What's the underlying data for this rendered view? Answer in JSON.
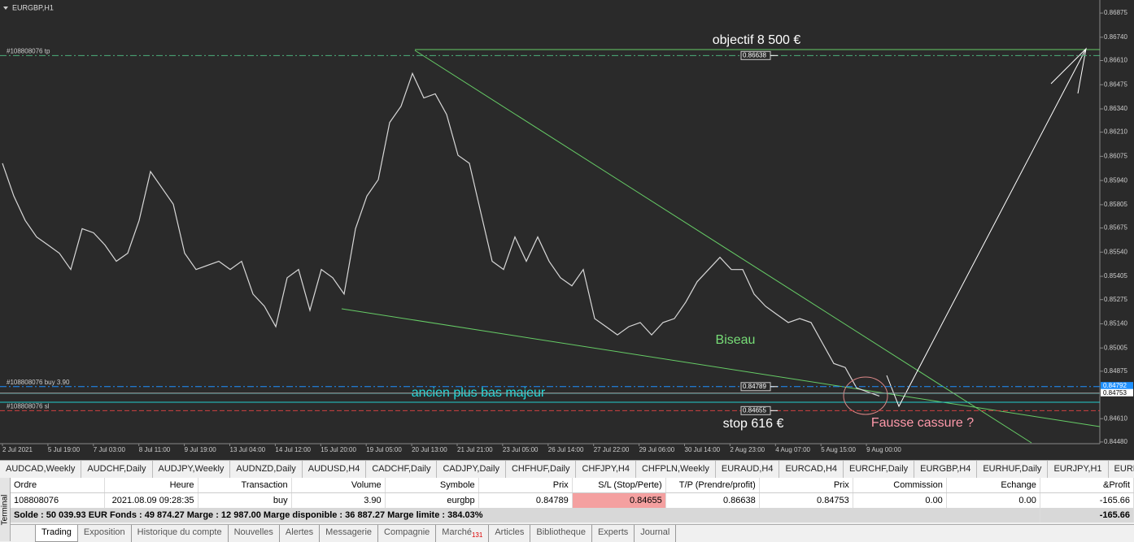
{
  "chart_data": {
    "type": "line",
    "title": "EURGBP,H1",
    "annotations": {
      "target": "objectif 8 500 €",
      "pattern": "Biseau",
      "support": "ancien plus bas majeur",
      "stop": "stop 616 €",
      "fake": "Fausse cassure ?"
    },
    "xtick_labels": [
      "2 Jul 2021",
      "5 Jul 19:00",
      "7 Jul 03:00",
      "8 Jul 11:00",
      "9 Jul 19:00",
      "13 Jul 04:00",
      "14 Jul 12:00",
      "15 Jul 20:00",
      "19 Jul 05:00",
      "20 Jul 13:00",
      "21 Jul 21:00",
      "23 Jul 05:00",
      "26 Jul 14:00",
      "27 Jul 22:00",
      "29 Jul 06:00",
      "30 Jul 14:00",
      "2 Aug 23:00",
      "4 Aug 07:00",
      "5 Aug 15:00",
      "9 Aug 00:00"
    ],
    "series": [
      {
        "name": "EURGBP",
        "color": "#d8d8d8",
        "values": [
          0.86036,
          0.85853,
          0.85717,
          0.85625,
          0.8558,
          0.85534,
          0.85443,
          0.85671,
          0.85648,
          0.8558,
          0.85489,
          0.85534,
          0.85717,
          0.8599,
          0.85899,
          0.85808,
          0.85534,
          0.85443,
          0.85466,
          0.85489,
          0.85443,
          0.85489,
          0.85306,
          0.85238,
          0.85124,
          0.85397,
          0.85443,
          0.85215,
          0.85443,
          0.85397,
          0.85306,
          0.85671,
          0.85853,
          0.85945,
          0.86264,
          0.86355,
          0.86538,
          0.86401,
          0.86424,
          0.86309,
          0.86081,
          0.86036,
          0.85762,
          0.85489,
          0.85443,
          0.85625,
          0.85489,
          0.85625,
          0.85489,
          0.85397,
          0.85352,
          0.85443,
          0.85169,
          0.85124,
          0.85078,
          0.85124,
          0.85147,
          0.85078,
          0.85147,
          0.85169,
          0.85261,
          0.85375,
          0.85443,
          0.85511,
          0.85443,
          0.85443,
          0.85306,
          0.85238,
          0.85192,
          0.85147,
          0.85169,
          0.85147,
          0.85032,
          0.84918,
          0.84896,
          0.84782,
          0.84759,
          0.84736
        ]
      }
    ],
    "ylim": [
      0.84475,
      0.86948
    ],
    "yticks": [
      0.86875,
      {
        "value": 0.8674,
        "label": "0.86740"
      },
      {
        "value": 0.8661,
        "label": "0.86610"
      },
      0.86475,
      {
        "value": 0.8634,
        "label": "0.86340"
      },
      {
        "value": 0.8621,
        "label": "0.86210"
      },
      0.86075,
      {
        "value": 0.8594,
        "label": "0.85940"
      },
      0.85805,
      0.85675,
      {
        "value": 0.8554,
        "label": "0.85540"
      },
      0.85405,
      0.85275,
      {
        "value": 0.8514,
        "label": "0.85140"
      },
      0.85005,
      0.84875,
      {
        "value": 0.8461,
        "label": "0.84610"
      },
      {
        "value": 0.8448,
        "label": "0.84480"
      }
    ],
    "orders": [
      {
        "name": "#108808076 tp",
        "price": 0.86638,
        "color": "#4caf7a"
      },
      {
        "name": "#108808076 buy 3.90",
        "price": 0.84789,
        "color": "#1e90ff"
      },
      {
        "name": "#108808076 sl",
        "price": 0.84655,
        "color": "#d04040"
      }
    ],
    "ask": 0.84792,
    "bid": 0.84753
  },
  "terminal": {
    "symbol_tabs": [
      "AUDCAD,Weekly",
      "AUDCHF,Daily",
      "AUDJPY,Weekly",
      "AUDNZD,Daily",
      "AUDUSD,H4",
      "CADCHF,Daily",
      "CADJPY,Daily",
      "CHFHUF,Daily",
      "CHFJPY,H4",
      "CHFPLN,Weekly",
      "EURAUD,H4",
      "EURCAD,H4",
      "EURCHF,Daily",
      "EURGBP,H4",
      "EURHUF,Daily",
      "EURJPY,H1",
      "EURNO"
    ],
    "headers": [
      "Ordre",
      "Heure",
      "Transaction",
      "Volume",
      "Symbole",
      "Prix",
      "S/L (Stop/Perte)",
      "T/P (Prendre/profit)",
      "Prix",
      "Commission",
      "Echange",
      "&Profit"
    ],
    "row": [
      "108808076",
      "2021.08.09 09:28:35",
      "buy",
      "3.90",
      "eurgbp",
      "0.84789",
      "0.84655",
      "0.86638",
      "0.84753",
      "0.00",
      "0.00",
      "-165.66"
    ],
    "balance": "Solde : 50 039.93 EUR  Fonds : 49 874.27  Marge : 12 987.00  Marge disponible : 36 887.27  Marge limite : 384.03%",
    "balance_profit": "-165.66",
    "side_label": "Terminal",
    "bottom_tabs": [
      "Trading",
      "Exposition",
      "Historique du compte",
      "Nouvelles",
      "Alertes",
      "Messagerie",
      "Compagnie",
      "Marché",
      "Articles",
      "Bibliotheque",
      "Experts",
      "Journal"
    ],
    "market_badge": "131"
  }
}
